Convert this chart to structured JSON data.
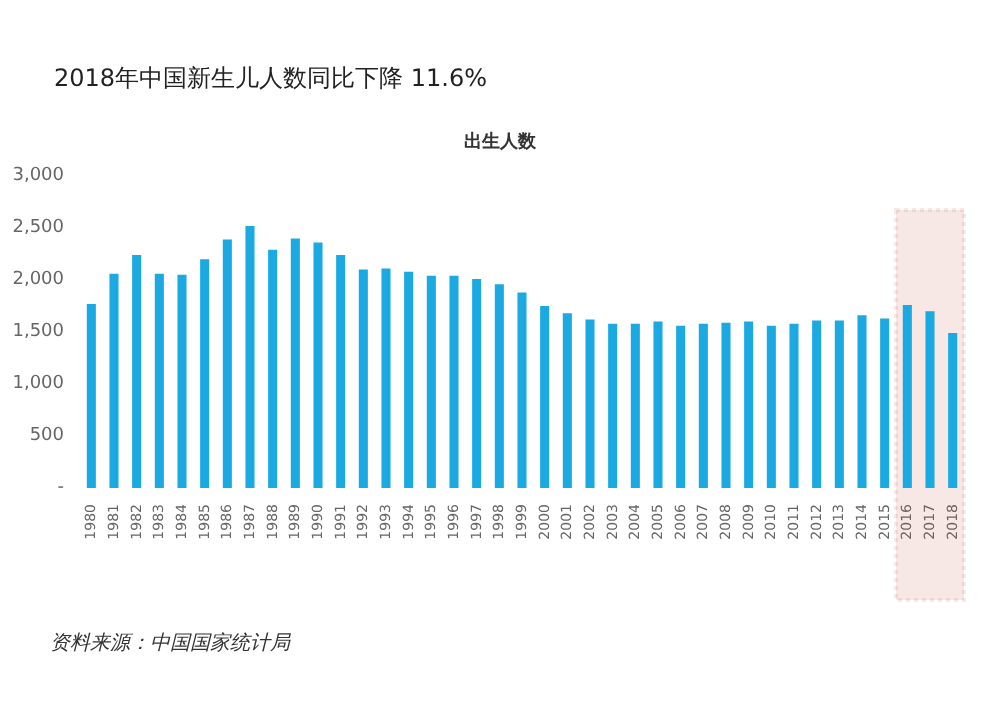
{
  "chart_data": {
    "type": "bar",
    "title": "2018年中国新生儿人数同比下降 11.6%",
    "subtitle": "出生人数",
    "categories": [
      "1980",
      "1981",
      "1982",
      "1983",
      "1984",
      "1985",
      "1986",
      "1987",
      "1988",
      "1989",
      "1990",
      "1991",
      "1992",
      "1993",
      "1994",
      "1995",
      "1996",
      "1997",
      "1998",
      "1999",
      "2000",
      "2001",
      "2002",
      "2003",
      "2004",
      "2005",
      "2006",
      "2007",
      "2008",
      "2009",
      "2010",
      "2011",
      "2012",
      "2013",
      "2014",
      "2015",
      "2016",
      "2017",
      "2018"
    ],
    "values": [
      1770,
      2060,
      2240,
      2060,
      2050,
      2200,
      2390,
      2520,
      2290,
      2400,
      2360,
      2240,
      2100,
      2110,
      2080,
      2040,
      2040,
      2010,
      1960,
      1880,
      1750,
      1680,
      1620,
      1580,
      1580,
      1600,
      1560,
      1580,
      1590,
      1600,
      1560,
      1580,
      1610,
      1610,
      1660,
      1630,
      1760,
      1700,
      1490
    ],
    "color": "#1aa9e0",
    "ylim": [
      0,
      3000
    ],
    "yticks": [
      {
        "value": 0,
        "label": "-"
      },
      500,
      {
        "value": 1000,
        "label": "1,000"
      },
      {
        "value": 1500,
        "label": "1,500"
      },
      {
        "value": 2000,
        "label": "2,000"
      },
      {
        "value": 2500,
        "label": "2,500"
      },
      {
        "value": 3000,
        "label": "3,000"
      }
    ],
    "bands": [
      {
        "axis": "x",
        "from": "2016",
        "to": "2018",
        "color": "#c0392b"
      }
    ],
    "annotations": [
      "资料来源：中国国家统计局"
    ],
    "grid": false
  }
}
